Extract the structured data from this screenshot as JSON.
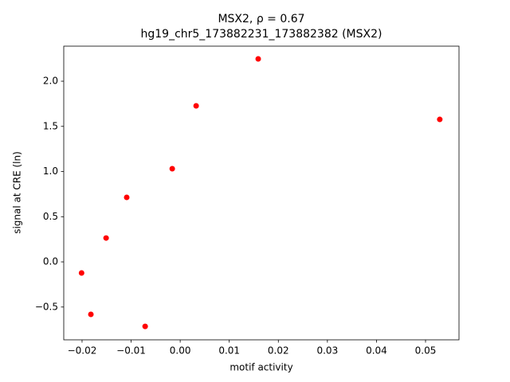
{
  "chart_data": {
    "type": "scatter",
    "title": "MSX2, ρ = 0.67",
    "subtitle": "hg19_chr5_173882231_173882382 (MSX2)",
    "x_label": "motif activity",
    "y_label": "signal at CRE (ln)",
    "color": "#ff0000",
    "x": [
      0.0159,
      0.00325,
      0.0529,
      -0.00162,
      -0.0109,
      -0.0151,
      -0.0201,
      -0.0182,
      -0.00714
    ],
    "values": [
      2.247,
      1.727,
      1.577,
      1.031,
      0.714,
      0.264,
      -0.123,
      -0.581,
      -0.714
    ],
    "xlim": [
      -0.02373,
      0.05682
    ],
    "ylim": [
      -0.863,
      2.388
    ],
    "xticks": [
      {
        "value": -0.02,
        "label": "−0.02"
      },
      {
        "value": -0.01,
        "label": "−0.01"
      },
      {
        "value": 0,
        "label": "0.00"
      },
      0.01,
      0.02,
      0.03,
      0.04,
      0.05
    ],
    "yticks": [
      {
        "value": -0.5,
        "label": "−0.5"
      },
      {
        "value": 0,
        "label": "0.0"
      },
      0.5,
      {
        "value": 1,
        "label": "1.0"
      },
      1.5,
      {
        "value": 2,
        "label": "2.0"
      }
    ],
    "grid": false
  }
}
